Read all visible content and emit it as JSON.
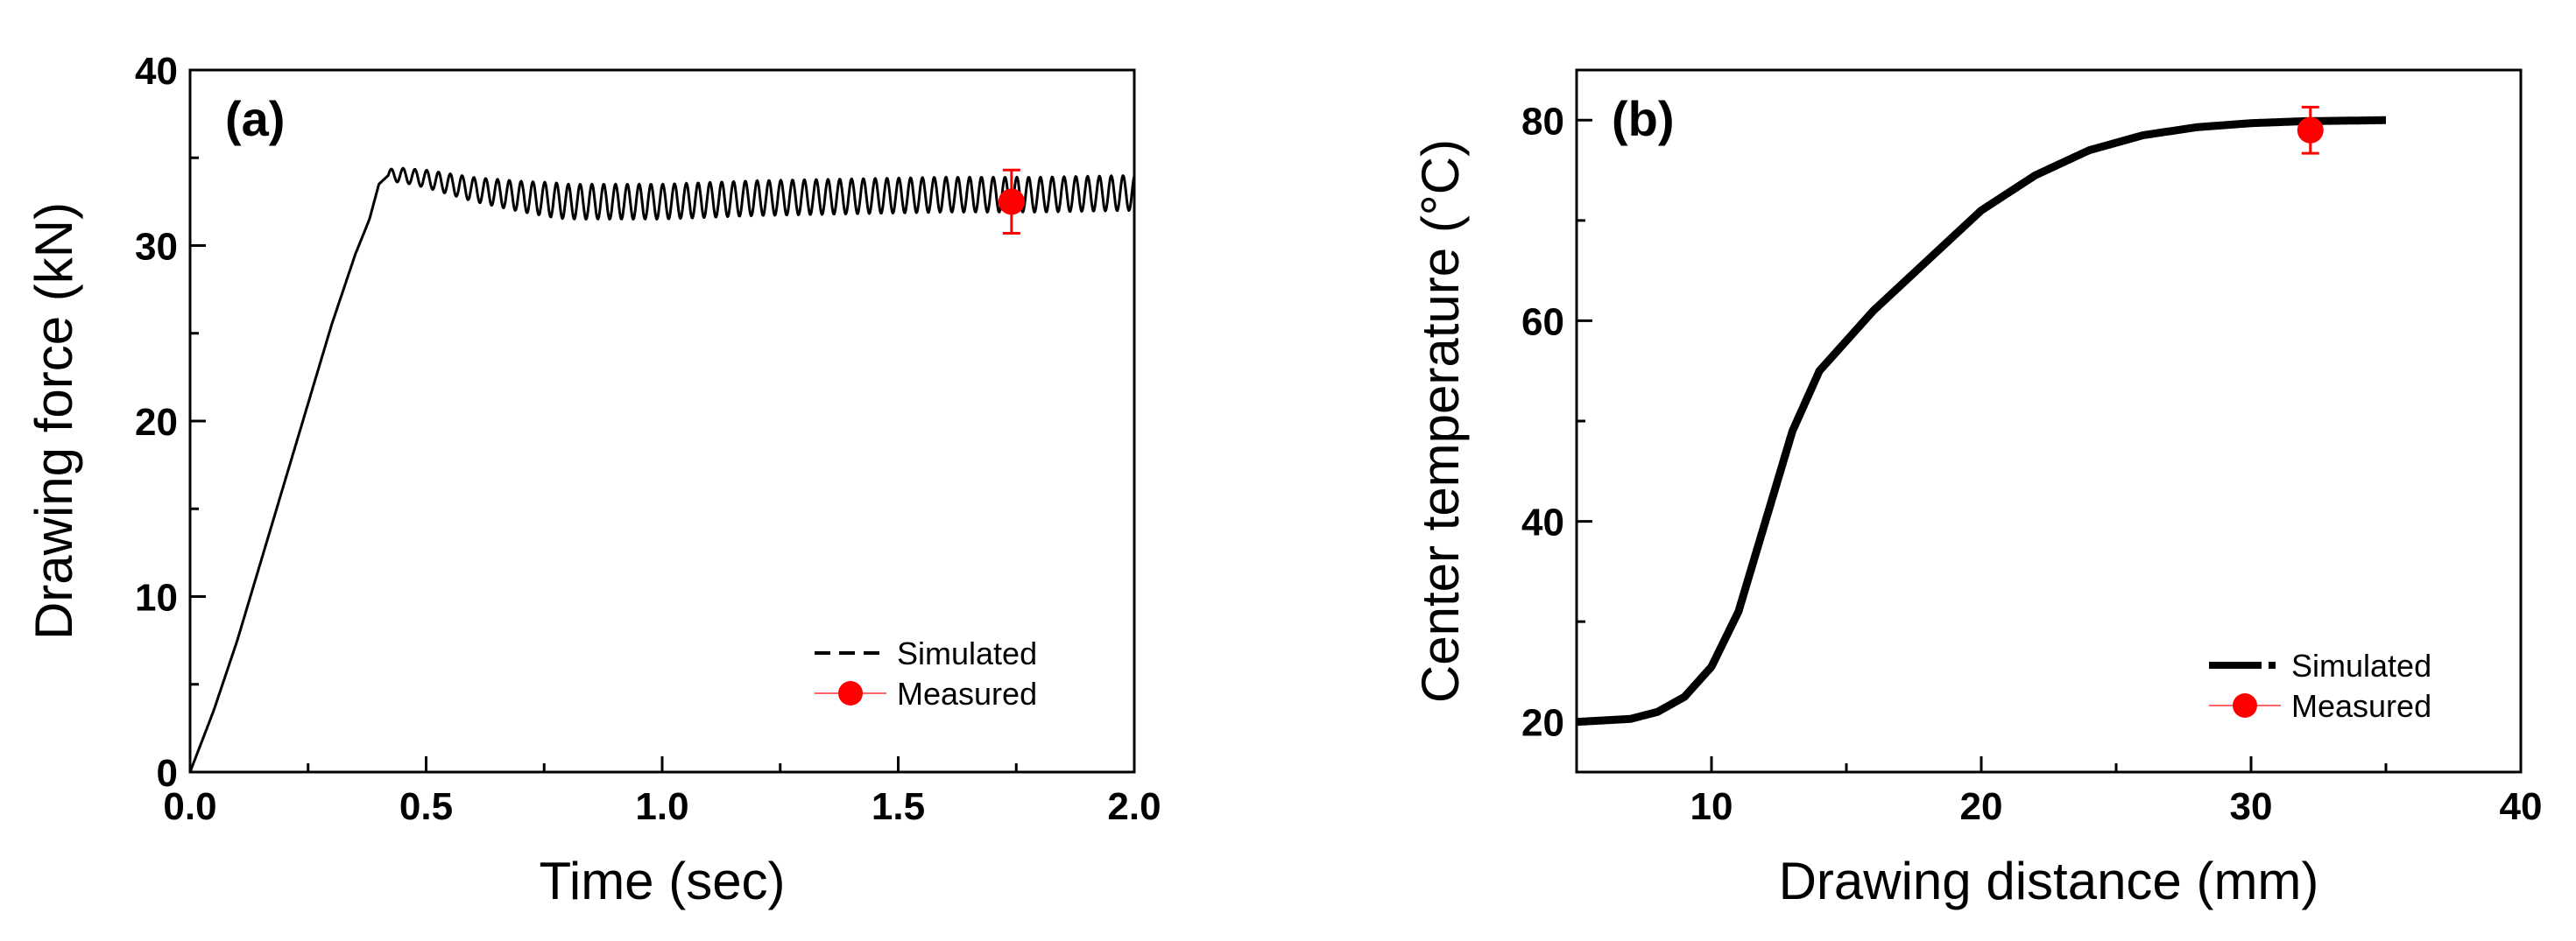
{
  "chart_data": [
    {
      "type": "line",
      "panel_label": "(a)",
      "xlabel": "Time (sec)",
      "ylabel": "Drawing force (kN)",
      "xlim": [
        0,
        2.0
      ],
      "ylim": [
        0,
        40
      ],
      "x_ticks": [
        "0.0",
        "0.5",
        "1.0",
        "1.5",
        "2.0"
      ],
      "y_ticks": [
        "0",
        "10",
        "20",
        "30",
        "40"
      ],
      "legend": {
        "position": "bottom-right",
        "entries": [
          "Simulated",
          "Measured"
        ]
      },
      "series": [
        {
          "name": "Simulated",
          "style": "dashed",
          "color": "#000000",
          "x": [
            0.0,
            0.05,
            0.1,
            0.15,
            0.2,
            0.25,
            0.3,
            0.35,
            0.38,
            0.4,
            0.42,
            0.45,
            0.5,
            0.6,
            0.7,
            0.8,
            1.0,
            1.2,
            1.4,
            1.6,
            1.8,
            2.0
          ],
          "y": [
            0,
            3.5,
            7.5,
            12,
            16.5,
            21,
            25.5,
            29.5,
            31.5,
            33.5,
            34,
            34,
            33.8,
            33.2,
            32.8,
            32.5,
            32.5,
            32.7,
            32.8,
            32.9,
            32.9,
            33
          ],
          "oscillation": {
            "start_x": 0.42,
            "amplitude": 1.0,
            "period": 0.025
          }
        },
        {
          "name": "Measured",
          "color": "#ff0000",
          "x": [
            1.74
          ],
          "y": [
            32.5
          ],
          "error": [
            1.8
          ]
        }
      ]
    },
    {
      "type": "line",
      "panel_label": "(b)",
      "xlabel": "Drawing distance (mm)",
      "ylabel": "Center temperature (°C)",
      "xlim": [
        5,
        40
      ],
      "ylim": [
        15,
        85
      ],
      "x_ticks": [
        "10",
        "20",
        "30",
        "40"
      ],
      "y_ticks": [
        "20",
        "40",
        "60",
        "80"
      ],
      "legend": {
        "position": "bottom-right",
        "entries": [
          "Simulated",
          "Measured"
        ]
      },
      "series": [
        {
          "name": "Simulated",
          "style": "solid",
          "color": "#000000",
          "x": [
            5,
            7,
            8,
            9,
            10,
            11,
            12,
            13,
            14,
            15,
            16,
            18,
            20,
            22,
            24,
            26,
            28,
            30,
            32,
            35
          ],
          "y": [
            20,
            20.3,
            21,
            22.5,
            25.5,
            31,
            40,
            49,
            55,
            58,
            61,
            66,
            71,
            74.5,
            77,
            78.5,
            79.3,
            79.7,
            79.9,
            80
          ]
        },
        {
          "name": "Measured",
          "color": "#ff0000",
          "x": [
            32.2
          ],
          "y": [
            79
          ],
          "error": [
            2.3
          ]
        }
      ]
    }
  ]
}
